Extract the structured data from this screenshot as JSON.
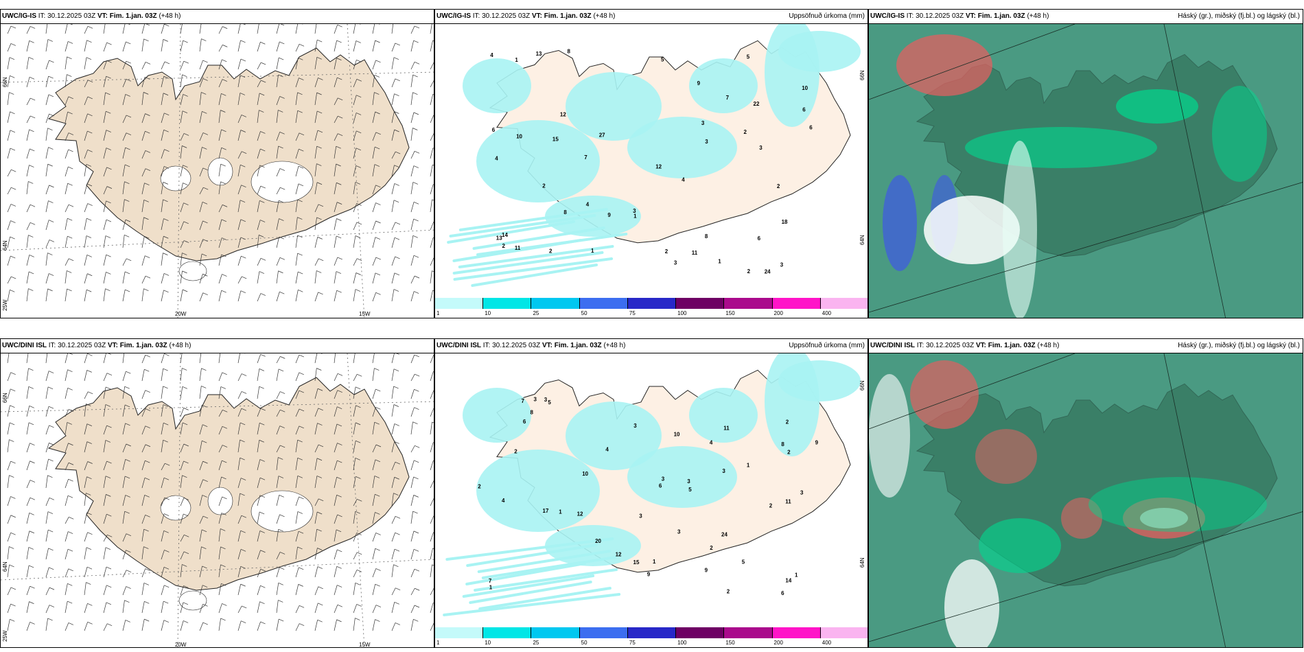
{
  "rows": [
    {
      "model": "UWC/IG-IS",
      "wind_panel": {
        "header_model": "UWC/IG-IS",
        "header_it": "IT: 30.12.2025 03Z",
        "header_vt_label": "VT:",
        "header_vt": "Fim. 1.jan. 03Z",
        "header_lead": "(+48 h)"
      },
      "precip_panel": {
        "header_model": "UWC/IG-IS",
        "header_it": "IT: 30.12.2025 03Z",
        "header_vt_label": "VT:",
        "header_vt": "Fim. 1.jan. 03Z",
        "header_lead": "(+48 h)",
        "title": "Uppsöfnuð úrkoma (mm)"
      },
      "cloud_panel": {
        "header_model": "UWC/IG-IS",
        "header_it": "IT: 30.12.2025 03Z",
        "header_vt_label": "VT:",
        "header_vt": "Fim. 1.jan. 03Z",
        "header_lead": "(+48 h)",
        "title": "Háský (gr.), miðský (fj.bl.) og lágský (bl.)"
      }
    },
    {
      "model": "UWC/DINI ISL",
      "wind_panel": {
        "header_model": "UWC/DINI ISL",
        "header_it": "IT: 30.12.2025 03Z",
        "header_vt_label": "VT:",
        "header_vt": "Fim. 1.jan. 03Z",
        "header_lead": "(+48 h)"
      },
      "precip_panel": {
        "header_model": "UWC/DINI ISL",
        "header_it": "IT: 30.12.2025 03Z",
        "header_vt_label": "VT:",
        "header_vt": "Fim. 1.jan. 03Z",
        "header_lead": "(+48 h)",
        "title": "Uppsöfnuð úrkoma (mm)"
      },
      "cloud_panel": {
        "header_model": "UWC/DINI ISL",
        "header_it": "IT: 30.12.2025 03Z",
        "header_vt_label": "VT:",
        "header_vt": "Fim. 1.jan. 03Z",
        "header_lead": "(+48 h)",
        "title": "Háský (gr.), miðský (fj.bl.) og lágský (bl.)"
      }
    }
  ],
  "grid_labels": {
    "lat_upper": "66N",
    "lat_lower": "64N",
    "lon_a": "25W",
    "lon_b": "20W",
    "lon_c": "15W"
  },
  "precip_scale": {
    "ticks": [
      "1",
      "10",
      "25",
      "50",
      "75",
      "100",
      "150",
      "200",
      "400"
    ],
    "colors": [
      "#c4fafa",
      "#00e6e6",
      "#00c8f0",
      "#3c6ef0",
      "#2828c8",
      "#6e0064",
      "#aa0a8c",
      "#ff14c8",
      "#fab4f0"
    ]
  },
  "colors": {
    "land": "#efdfca",
    "precip_land": "#fdf0e4",
    "precip_light": "#a8f3f3",
    "cloud_base": "#4a9a82",
    "cloud_dark": "#2e6a52",
    "high_cloud": "#e06060",
    "low_cloud": "#00d98f",
    "mid_cloud": "#4060d8"
  },
  "precip_values": {
    "top": [
      "3",
      "5",
      "4",
      "2",
      "7",
      "8",
      "12",
      "6",
      "10",
      "27",
      "24",
      "15",
      "11",
      "8",
      "6",
      "3",
      "2",
      "14",
      "22",
      "13",
      "4",
      "9",
      "11",
      "18",
      "7",
      "6",
      "10",
      "13",
      "2",
      "1",
      "4",
      "3",
      "2",
      "1",
      "1",
      "2",
      "3",
      "12",
      "8",
      "9",
      "3",
      "2",
      "4",
      "5",
      "6",
      "3",
      "2",
      "1"
    ],
    "bottom": [
      "5",
      "3",
      "11",
      "9",
      "7",
      "12",
      "6",
      "8",
      "14",
      "24",
      "17",
      "11",
      "10",
      "4",
      "3",
      "2",
      "5",
      "9",
      "6",
      "3",
      "15",
      "7",
      "3",
      "2",
      "1",
      "10",
      "20",
      "3",
      "8",
      "2",
      "4",
      "5",
      "6",
      "9",
      "12",
      "3",
      "2",
      "1",
      "2",
      "1",
      "3",
      "4",
      "2",
      "1",
      "3",
      "2",
      "1",
      "3"
    ]
  }
}
